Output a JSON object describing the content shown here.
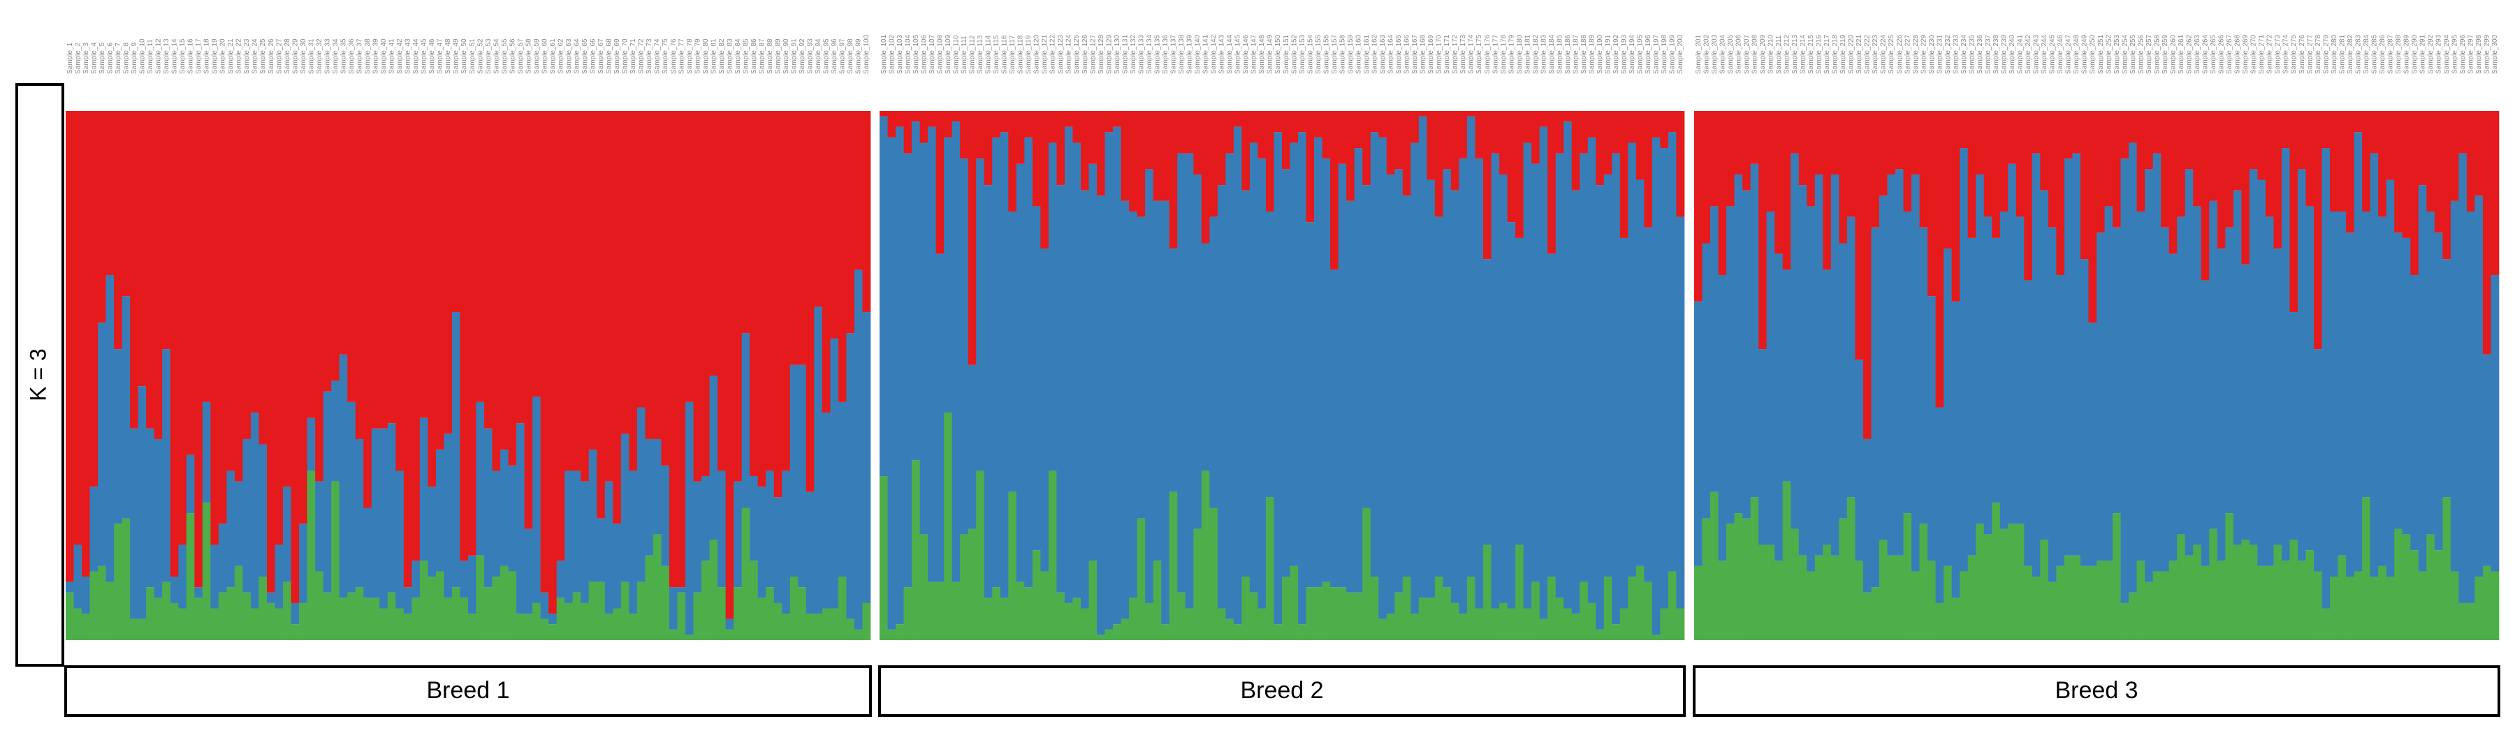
{
  "chart_data": {
    "type": "bar",
    "subtype": "stacked-proportion",
    "k_label": "K = 3",
    "ylim": [
      0,
      1
    ],
    "grid": false,
    "legend": "none",
    "colors": {
      "red": "#e41a1c",
      "blue": "#377eb8",
      "green": "#4daf4a"
    },
    "panels": [
      {
        "label": "Breed 1",
        "samples_start": 1,
        "samples_end": 100
      },
      {
        "label": "Breed 2",
        "samples_start": 101,
        "samples_end": 200
      },
      {
        "label": "Breed 3",
        "samples_start": 201,
        "samples_end": 300
      }
    ],
    "series": [
      {
        "color": "red",
        "values": [
          0.89,
          0.82,
          0.88,
          0.71,
          0.4,
          0.31,
          0.45,
          0.35,
          0.6,
          0.52,
          0.6,
          0.62,
          0.45,
          0.88,
          0.82,
          0.65,
          0.9,
          0.55,
          0.82,
          0.78,
          0.68,
          0.7,
          0.62,
          0.57,
          0.63,
          0.91,
          0.82,
          0.71,
          0.93,
          0.78,
          0.58,
          0.7,
          0.53,
          0.51,
          0.46,
          0.55,
          0.62,
          0.75,
          0.6,
          0.6,
          0.59,
          0.68,
          0.9,
          0.85,
          0.58,
          0.71,
          0.64,
          0.61,
          0.38,
          0.85,
          0.84,
          0.55,
          0.6,
          0.68,
          0.64,
          0.67,
          0.59,
          0.79,
          0.54,
          0.91,
          0.95,
          0.85,
          0.68,
          0.68,
          0.7,
          0.64,
          0.77,
          0.7,
          0.78,
          0.61,
          0.68,
          0.56,
          0.62,
          0.62,
          0.67,
          0.9,
          0.9,
          0.55,
          0.7,
          0.69,
          0.5,
          0.68,
          0.96,
          0.7,
          0.42,
          0.69,
          0.71,
          0.68,
          0.73,
          0.68,
          0.48,
          0.48,
          0.72,
          0.37,
          0.57,
          0.43,
          0.55,
          0.42,
          0.3,
          0.38,
          0.01,
          0.05,
          0.03,
          0.08,
          0.02,
          0.06,
          0.03,
          0.27,
          0.05,
          0.02,
          0.09,
          0.48,
          0.09,
          0.14,
          0.05,
          0.04,
          0.19,
          0.1,
          0.05,
          0.18,
          0.26,
          0.06,
          0.14,
          0.03,
          0.06,
          0.15,
          0.1,
          0.16,
          0.04,
          0.03,
          0.17,
          0.19,
          0.2,
          0.11,
          0.17,
          0.17,
          0.26,
          0.08,
          0.08,
          0.12,
          0.25,
          0.2,
          0.14,
          0.08,
          0.03,
          0.15,
          0.06,
          0.09,
          0.19,
          0.04,
          0.11,
          0.06,
          0.04,
          0.21,
          0.05,
          0.09,
          0.3,
          0.1,
          0.17,
          0.07,
          0.14,
          0.04,
          0.05,
          0.12,
          0.11,
          0.16,
          0.06,
          0.01,
          0.13,
          0.2,
          0.11,
          0.15,
          0.09,
          0.01,
          0.09,
          0.28,
          0.08,
          0.12,
          0.21,
          0.24,
          0.06,
          0.1,
          0.03,
          0.27,
          0.08,
          0.02,
          0.15,
          0.08,
          0.05,
          0.14,
          0.12,
          0.08,
          0.24,
          0.06,
          0.13,
          0.22,
          0.05,
          0.07,
          0.04,
          0.2,
          0.36,
          0.25,
          0.18,
          0.31,
          0.18,
          0.12,
          0.15,
          0.1,
          0.45,
          0.19,
          0.27,
          0.3,
          0.08,
          0.14,
          0.18,
          0.12,
          0.3,
          0.12,
          0.25,
          0.2,
          0.47,
          0.62,
          0.22,
          0.16,
          0.12,
          0.11,
          0.19,
          0.12,
          0.22,
          0.35,
          0.56,
          0.26,
          0.36,
          0.07,
          0.24,
          0.12,
          0.2,
          0.24,
          0.19,
          0.1,
          0.2,
          0.32,
          0.08,
          0.15,
          0.22,
          0.31,
          0.09,
          0.08,
          0.28,
          0.4,
          0.23,
          0.18,
          0.22,
          0.09,
          0.06,
          0.19,
          0.11,
          0.08,
          0.22,
          0.27,
          0.2,
          0.11,
          0.18,
          0.32,
          0.17,
          0.26,
          0.22,
          0.15,
          0.29,
          0.11,
          0.13,
          0.2,
          0.26,
          0.07,
          0.38,
          0.11,
          0.18,
          0.45,
          0.07,
          0.19,
          0.19,
          0.23,
          0.04,
          0.19,
          0.08,
          0.2,
          0.13,
          0.23,
          0.24,
          0.31,
          0.14,
          0.19,
          0.23,
          0.28,
          0.17,
          0.08,
          0.19,
          0.16,
          0.46,
          0.31
        ]
      },
      {
        "color": "blue",
        "values": [
          0.02,
          0.12,
          0.07,
          0.16,
          0.46,
          0.58,
          0.33,
          0.42,
          0.36,
          0.44,
          0.3,
          0.3,
          0.44,
          0.05,
          0.12,
          0.11,
          0.02,
          0.19,
          0.12,
          0.13,
          0.22,
          0.16,
          0.29,
          0.37,
          0.25,
          0.02,
          0.12,
          0.18,
          0.04,
          0.15,
          0.1,
          0.17,
          0.38,
          0.19,
          0.46,
          0.36,
          0.28,
          0.17,
          0.32,
          0.34,
          0.32,
          0.26,
          0.05,
          0.07,
          0.27,
          0.17,
          0.23,
          0.31,
          0.52,
          0.07,
          0.11,
          0.29,
          0.3,
          0.2,
          0.22,
          0.2,
          0.36,
          0.16,
          0.39,
          0.05,
          0.02,
          0.07,
          0.25,
          0.23,
          0.23,
          0.25,
          0.12,
          0.25,
          0.16,
          0.28,
          0.27,
          0.33,
          0.22,
          0.18,
          0.19,
          0.08,
          0.01,
          0.44,
          0.21,
          0.16,
          0.31,
          0.22,
          0.02,
          0.2,
          0.33,
          0.16,
          0.21,
          0.22,
          0.2,
          0.27,
          0.4,
          0.42,
          0.23,
          0.58,
          0.37,
          0.51,
          0.33,
          0.54,
          0.68,
          0.55,
          0.68,
          0.93,
          0.94,
          0.82,
          0.64,
          0.74,
          0.86,
          0.62,
          0.52,
          0.87,
          0.71,
          0.31,
          0.59,
          0.78,
          0.85,
          0.88,
          0.53,
          0.79,
          0.85,
          0.65,
          0.61,
          0.62,
          0.77,
          0.9,
          0.86,
          0.79,
          0.75,
          0.83,
          0.94,
          0.94,
          0.79,
          0.73,
          0.57,
          0.82,
          0.68,
          0.8,
          0.46,
          0.83,
          0.86,
          0.67,
          0.43,
          0.55,
          0.8,
          0.88,
          0.94,
          0.73,
          0.85,
          0.85,
          0.54,
          0.93,
          0.77,
          0.8,
          0.93,
          0.69,
          0.85,
          0.8,
          0.6,
          0.8,
          0.74,
          0.84,
          0.61,
          0.84,
          0.91,
          0.83,
          0.8,
          0.72,
          0.89,
          0.91,
          0.79,
          0.68,
          0.79,
          0.78,
          0.86,
          0.87,
          0.85,
          0.54,
          0.86,
          0.81,
          0.73,
          0.58,
          0.88,
          0.79,
          0.93,
          0.61,
          0.84,
          0.92,
          0.8,
          0.81,
          0.88,
          0.84,
          0.76,
          0.89,
          0.7,
          0.82,
          0.73,
          0.67,
          0.94,
          0.87,
          0.83,
          0.74,
          0.5,
          0.52,
          0.54,
          0.54,
          0.6,
          0.64,
          0.62,
          0.63,
          0.37,
          0.63,
          0.58,
          0.4,
          0.71,
          0.7,
          0.69,
          0.72,
          0.52,
          0.72,
          0.52,
          0.53,
          0.38,
          0.29,
          0.68,
          0.65,
          0.72,
          0.73,
          0.57,
          0.75,
          0.56,
          0.5,
          0.37,
          0.6,
          0.56,
          0.8,
          0.6,
          0.66,
          0.6,
          0.5,
          0.6,
          0.68,
          0.58,
          0.54,
          0.8,
          0.66,
          0.67,
          0.55,
          0.75,
          0.76,
          0.58,
          0.46,
          0.62,
          0.67,
          0.54,
          0.84,
          0.85,
          0.66,
          0.78,
          0.79,
          0.65,
          0.58,
          0.6,
          0.73,
          0.64,
          0.54,
          0.62,
          0.59,
          0.54,
          0.67,
          0.52,
          0.71,
          0.73,
          0.66,
          0.56,
          0.78,
          0.43,
          0.74,
          0.65,
          0.42,
          0.87,
          0.69,
          0.65,
          0.65,
          0.83,
          0.54,
          0.8,
          0.66,
          0.75,
          0.56,
          0.56,
          0.52,
          0.73,
          0.61,
          0.6,
          0.45,
          0.7,
          0.85,
          0.74,
          0.72,
          0.4,
          0.56
        ]
      },
      {
        "color": "green",
        "values": [
          0.09,
          0.06,
          0.05,
          0.13,
          0.14,
          0.11,
          0.22,
          0.23,
          0.04,
          0.04,
          0.1,
          0.08,
          0.11,
          0.07,
          0.06,
          0.24,
          0.08,
          0.26,
          0.06,
          0.09,
          0.1,
          0.14,
          0.09,
          0.06,
          0.12,
          0.07,
          0.06,
          0.11,
          0.03,
          0.07,
          0.32,
          0.13,
          0.09,
          0.3,
          0.08,
          0.09,
          0.1,
          0.08,
          0.08,
          0.06,
          0.09,
          0.06,
          0.05,
          0.08,
          0.15,
          0.12,
          0.13,
          0.08,
          0.1,
          0.08,
          0.05,
          0.16,
          0.1,
          0.12,
          0.14,
          0.13,
          0.05,
          0.05,
          0.07,
          0.04,
          0.03,
          0.08,
          0.07,
          0.09,
          0.07,
          0.11,
          0.11,
          0.05,
          0.06,
          0.11,
          0.05,
          0.11,
          0.16,
          0.2,
          0.14,
          0.02,
          0.09,
          0.01,
          0.09,
          0.15,
          0.19,
          0.1,
          0.02,
          0.1,
          0.25,
          0.15,
          0.08,
          0.1,
          0.07,
          0.05,
          0.12,
          0.1,
          0.05,
          0.05,
          0.06,
          0.06,
          0.12,
          0.04,
          0.02,
          0.07,
          0.31,
          0.02,
          0.03,
          0.1,
          0.34,
          0.2,
          0.11,
          0.11,
          0.43,
          0.11,
          0.2,
          0.21,
          0.32,
          0.08,
          0.1,
          0.08,
          0.28,
          0.11,
          0.1,
          0.17,
          0.13,
          0.32,
          0.09,
          0.07,
          0.08,
          0.06,
          0.15,
          0.01,
          0.02,
          0.03,
          0.04,
          0.08,
          0.23,
          0.07,
          0.15,
          0.03,
          0.28,
          0.09,
          0.06,
          0.21,
          0.32,
          0.25,
          0.06,
          0.04,
          0.03,
          0.12,
          0.09,
          0.06,
          0.27,
          0.03,
          0.12,
          0.14,
          0.03,
          0.1,
          0.1,
          0.11,
          0.1,
          0.1,
          0.09,
          0.09,
          0.25,
          0.12,
          0.04,
          0.05,
          0.09,
          0.12,
          0.05,
          0.08,
          0.08,
          0.12,
          0.1,
          0.07,
          0.05,
          0.12,
          0.06,
          0.18,
          0.06,
          0.07,
          0.06,
          0.18,
          0.06,
          0.11,
          0.04,
          0.12,
          0.08,
          0.06,
          0.05,
          0.11,
          0.07,
          0.02,
          0.12,
          0.03,
          0.06,
          0.12,
          0.14,
          0.11,
          0.01,
          0.06,
          0.13,
          0.06,
          0.14,
          0.23,
          0.28,
          0.15,
          0.22,
          0.24,
          0.23,
          0.27,
          0.18,
          0.18,
          0.15,
          0.3,
          0.21,
          0.16,
          0.13,
          0.16,
          0.18,
          0.16,
          0.23,
          0.27,
          0.15,
          0.09,
          0.1,
          0.19,
          0.16,
          0.16,
          0.24,
          0.13,
          0.22,
          0.15,
          0.07,
          0.14,
          0.08,
          0.13,
          0.16,
          0.22,
          0.2,
          0.26,
          0.21,
          0.22,
          0.22,
          0.14,
          0.12,
          0.19,
          0.11,
          0.14,
          0.16,
          0.16,
          0.14,
          0.14,
          0.15,
          0.15,
          0.24,
          0.07,
          0.09,
          0.15,
          0.11,
          0.13,
          0.13,
          0.15,
          0.2,
          0.16,
          0.18,
          0.14,
          0.21,
          0.15,
          0.24,
          0.18,
          0.19,
          0.18,
          0.14,
          0.14,
          0.18,
          0.15,
          0.19,
          0.15,
          0.17,
          0.13,
          0.06,
          0.12,
          0.16,
          0.12,
          0.13,
          0.27,
          0.12,
          0.14,
          0.12,
          0.21,
          0.2,
          0.17,
          0.13,
          0.2,
          0.17,
          0.27,
          0.13,
          0.07,
          0.07,
          0.12,
          0.14,
          0.13
        ]
      }
    ]
  }
}
